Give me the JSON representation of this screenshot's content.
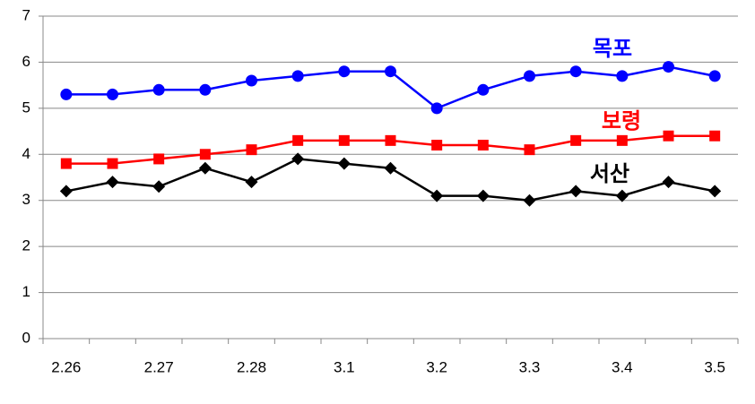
{
  "chart_data": {
    "type": "line",
    "categories": [
      "2.26",
      null,
      "2.27",
      null,
      "2.28",
      null,
      "3.1",
      null,
      "3.2",
      null,
      "3.3",
      null,
      "3.4",
      null,
      "3.5"
    ],
    "series": [
      {
        "name": "목포",
        "color": "#0000ff",
        "marker": "circle",
        "values": [
          5.3,
          5.3,
          5.4,
          5.4,
          5.6,
          5.7,
          5.8,
          5.8,
          5.0,
          5.4,
          5.7,
          5.8,
          5.7,
          5.9,
          5.7
        ]
      },
      {
        "name": "보령",
        "color": "#ff0000",
        "marker": "square",
        "values": [
          3.8,
          3.8,
          3.9,
          4.0,
          4.1,
          4.3,
          4.3,
          4.3,
          4.2,
          4.2,
          4.1,
          4.3,
          4.3,
          4.4,
          4.4
        ]
      },
      {
        "name": "서산",
        "color": "#000000",
        "marker": "diamond",
        "values": [
          3.2,
          3.4,
          3.3,
          3.7,
          3.4,
          3.9,
          3.8,
          3.7,
          3.1,
          3.1,
          3.0,
          3.2,
          3.1,
          3.4,
          3.2
        ]
      }
    ],
    "ylim": [
      0,
      7
    ],
    "yticks": [
      0,
      1,
      2,
      3,
      4,
      5,
      6,
      7
    ],
    "grid": true
  }
}
